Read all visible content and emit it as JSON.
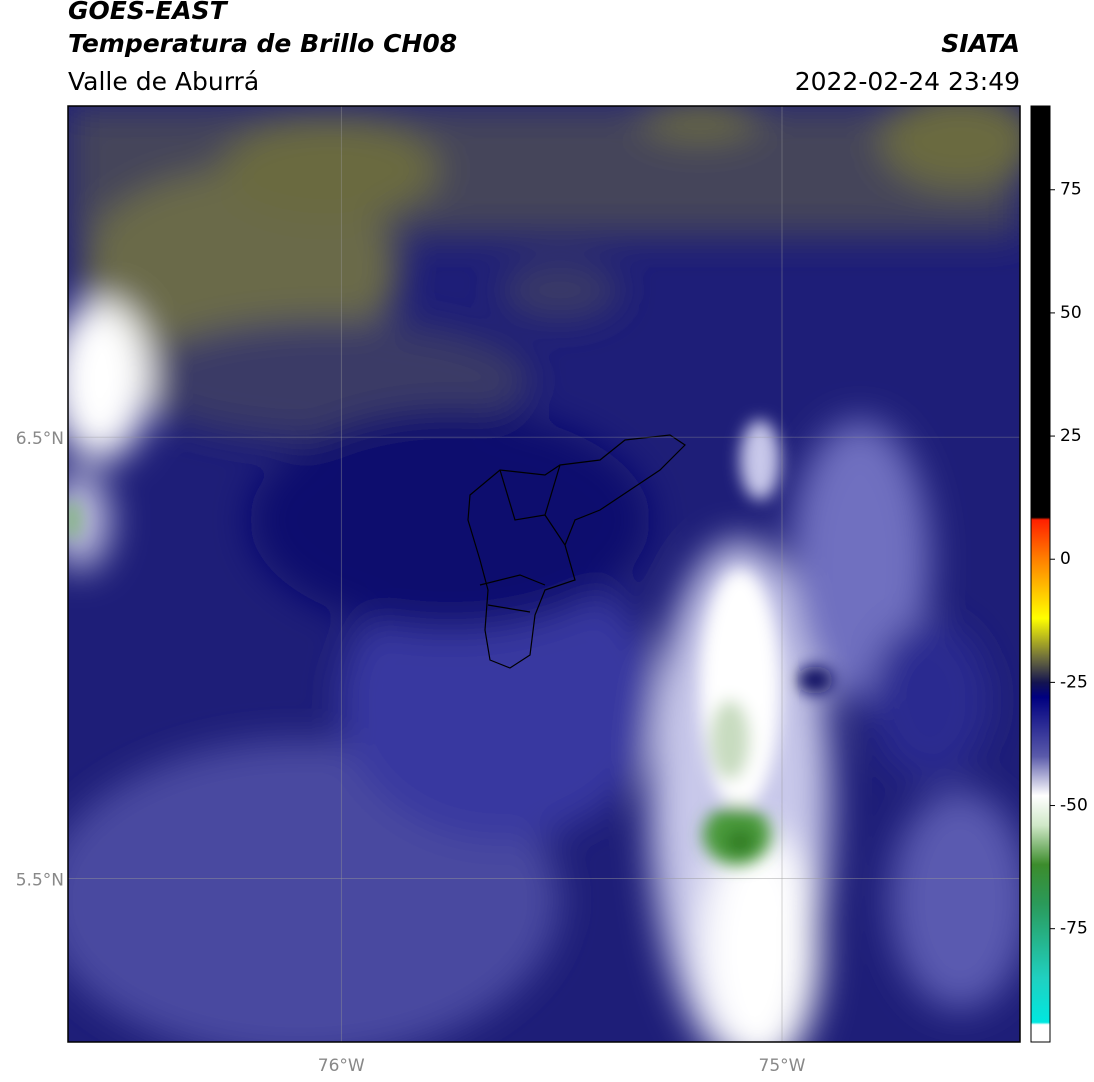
{
  "header": {
    "title": "GOES-EAST",
    "subtitle": "Temperatura de Brillo CH08",
    "region": "Valle de Aburrá",
    "source": "SIATA",
    "datetime": "2022-02-24 23:49"
  },
  "map": {
    "latlim": [
      5.13,
      7.25
    ],
    "lonlim": [
      -76.62,
      -74.46
    ],
    "latticks": [
      {
        "value": 6.5,
        "label": "6.5°N"
      },
      {
        "value": 5.5,
        "label": "5.5°N"
      }
    ],
    "lonticks": [
      {
        "value": -76,
        "label": "76°W"
      },
      {
        "value": -75,
        "label": "75°W"
      }
    ],
    "grid": true
  },
  "colorbar": {
    "lim": [
      -98,
      92
    ],
    "ticks": [
      75,
      50,
      25,
      0,
      -25,
      -50,
      -75
    ],
    "stops": [
      {
        "value": 92,
        "color": "#000000"
      },
      {
        "value": 8.5,
        "color": "#000000"
      },
      {
        "value": 8,
        "color": "#ff2000"
      },
      {
        "value": 0,
        "color": "#ff8000"
      },
      {
        "value": -12,
        "color": "#ffff00"
      },
      {
        "value": -20,
        "color": "#6e6e3c"
      },
      {
        "value": -25,
        "color": "#141450"
      },
      {
        "value": -28,
        "color": "#000080"
      },
      {
        "value": -40,
        "color": "#5a5aaa"
      },
      {
        "value": -48,
        "color": "#ffffff"
      },
      {
        "value": -54,
        "color": "#d0e8c8"
      },
      {
        "value": -62,
        "color": "#3c8c2c"
      },
      {
        "value": -70,
        "color": "#2a9a5a"
      },
      {
        "value": -85,
        "color": "#20d0c0"
      },
      {
        "value": -94,
        "color": "#00e8e0"
      },
      {
        "value": -94.5,
        "color": "#ffffff"
      },
      {
        "value": -98,
        "color": "#ffffff"
      }
    ]
  }
}
